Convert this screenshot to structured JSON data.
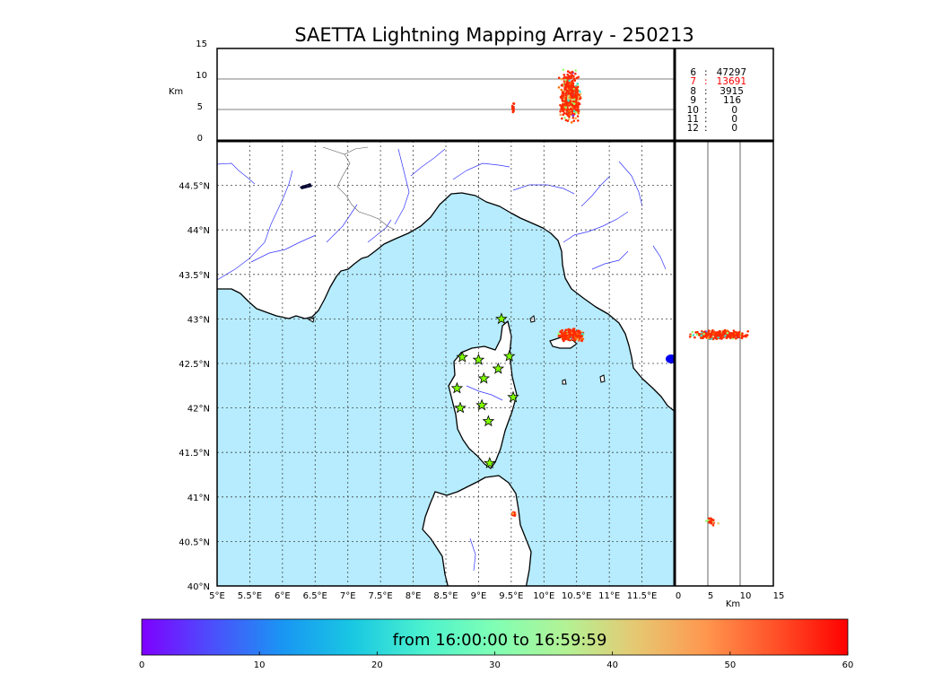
{
  "title": "SAETTA Lightning Mapping Array - 250213",
  "chart_data": [
    {
      "type": "scatter",
      "panel": "map",
      "xlim": [
        5.0,
        12.0
      ],
      "ylim": [
        40.0,
        45.0
      ],
      "x_ticks": [
        "5°E",
        "5.5°E",
        "6°E",
        "6.5°E",
        "7°E",
        "7.5°E",
        "8°E",
        "8.5°E",
        "9°E",
        "9.5°E",
        "10°E",
        "10.5°E",
        "11°E",
        "11.5°E"
      ],
      "y_ticks": [
        "40°N",
        "40.5°N",
        "41°N",
        "41.5°N",
        "42°N",
        "42.5°N",
        "43°N",
        "43.5°N",
        "44°N",
        "44.5°N"
      ],
      "grid": true,
      "stations": [
        {
          "lon": 9.35,
          "lat": 43.0
        },
        {
          "lon": 8.75,
          "lat": 42.57
        },
        {
          "lon": 9.0,
          "lat": 42.54
        },
        {
          "lon": 9.47,
          "lat": 42.58
        },
        {
          "lon": 9.3,
          "lat": 42.44
        },
        {
          "lon": 9.08,
          "lat": 42.33
        },
        {
          "lon": 8.67,
          "lat": 42.22
        },
        {
          "lon": 9.53,
          "lat": 42.12
        },
        {
          "lon": 9.05,
          "lat": 42.03
        },
        {
          "lon": 8.72,
          "lat": 42.0
        },
        {
          "lon": 9.15,
          "lat": 41.85
        },
        {
          "lon": 9.17,
          "lat": 41.38
        }
      ],
      "source_clusters": [
        {
          "lon_range": [
            10.2,
            10.65
          ],
          "lat_range": [
            42.74,
            42.9
          ],
          "time_min": 50,
          "count": 420
        },
        {
          "lon_range": [
            9.5,
            9.57
          ],
          "lat_range": [
            40.78,
            40.84
          ],
          "time_min": 56,
          "count": 25
        }
      ]
    },
    {
      "type": "scatter",
      "panel": "altitude-vs-longitude",
      "ylabel": "Km",
      "ylim": [
        0,
        15
      ],
      "y_ticks": [
        "0",
        "5",
        "10",
        "15"
      ],
      "source_clusters": [
        {
          "lon_range": [
            10.2,
            10.6
          ],
          "alt_range": [
            2.5,
            12
          ],
          "count": 600
        },
        {
          "lon_range": [
            9.5,
            9.55
          ],
          "alt_range": [
            4,
            6.5
          ],
          "count": 20
        }
      ]
    },
    {
      "type": "scatter",
      "panel": "latitude-vs-altitude",
      "xlabel": "Km",
      "xlim": [
        0,
        15
      ],
      "x_ticks": [
        "0",
        "5",
        "10",
        "15"
      ],
      "source_clusters": [
        {
          "alt_range": [
            2,
            12
          ],
          "lat_range": [
            42.76,
            42.88
          ],
          "count": 500
        },
        {
          "alt_range": [
            4,
            7
          ],
          "lat_range": [
            40.65,
            40.82
          ],
          "count": 20
        }
      ]
    }
  ],
  "station_counts": [
    {
      "stations": "6",
      "count": "47297",
      "color": "#000000"
    },
    {
      "stations": "7",
      "count": "13691",
      "color": "#ff0000"
    },
    {
      "stations": "8",
      "count": "3915",
      "color": "#000000"
    },
    {
      "stations": "9",
      "count": "116",
      "color": "#000000"
    },
    {
      "stations": "10",
      "count": "0",
      "color": "#000000"
    },
    {
      "stations": "11",
      "count": "0",
      "color": "#000000"
    },
    {
      "stations": "12",
      "count": "0",
      "color": "#000000"
    }
  ],
  "colorbar": {
    "label": "from 16:00:00 to 16:59:59",
    "ticks": [
      "0",
      "10",
      "20",
      "30",
      "40",
      "50",
      "60"
    ],
    "range": [
      0,
      60
    ],
    "colormap": "rainbow"
  },
  "colors": {
    "sea": "#b6ecfd",
    "land": "#ffffff",
    "river": "#3333ff",
    "station_fill": "#7fff00"
  }
}
